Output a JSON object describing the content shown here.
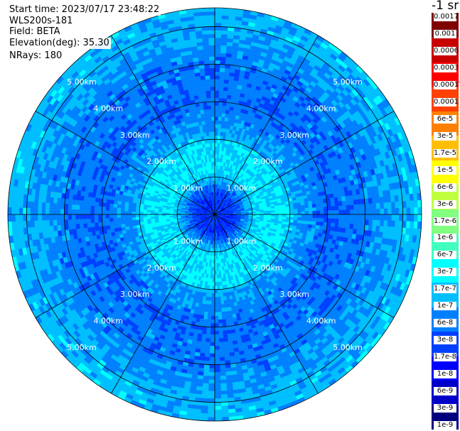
{
  "header": {
    "start_time": "Start time: 2023/07/17 23:48:22",
    "site": "WLS200s-181",
    "field": "Field: BETA",
    "elevation": "Elevation(deg): 35.30",
    "nrays": "NRays: 180"
  },
  "colorbar": {
    "unit_label": "-1 sr",
    "colors": [
      "#00007f",
      "#0000c8",
      "#0000ff",
      "#0040ff",
      "#0080ff",
      "#00bfff",
      "#00ffff",
      "#40ffbf",
      "#80ff80",
      "#bfff40",
      "#ffff00",
      "#ffbf00",
      "#ff8000",
      "#ff4000",
      "#ff0000",
      "#c80000",
      "#7f0000"
    ],
    "tick_labels": [
      "1e-9",
      "3e-9",
      "6e-9",
      "1e-8",
      "1.7e-8",
      "3e-8",
      "6e-8",
      "1e-7",
      "1.7e-7",
      "3e-7",
      "6e-7",
      "1e-6",
      "1.7e-6",
      "3e-6",
      "6e-6",
      "1e-5",
      "1.7e-5",
      "3e-5",
      "6e-5",
      "0.0001",
      "0.00017",
      "0.0003",
      "0.0006",
      "0.001",
      "0.0017"
    ]
  },
  "chart_data": {
    "type": "heatmap",
    "subtype": "polar-ppi",
    "field": "BETA",
    "units": "sr-1",
    "color_scale": "log",
    "value_range": [
      1e-09,
      0.0017
    ],
    "n_rays": 180,
    "max_range_km": 5.5,
    "range_rings_km": [
      1,
      2,
      3,
      4,
      5
    ],
    "range_labels": [
      "1.00km",
      "2.00km",
      "3.00km",
      "4.00km",
      "5.00km"
    ],
    "radial_lines_deg": [
      0,
      30,
      60,
      90,
      120,
      150,
      180,
      210,
      240,
      270,
      300,
      330
    ],
    "grid": true,
    "range_profile": [
      {
        "range_km": 0.2,
        "value": 1e-08
      },
      {
        "range_km": 0.6,
        "value": 2e-08
      },
      {
        "range_km": 0.9,
        "value": 8e-08
      },
      {
        "range_km": 1.2,
        "value": 2e-07
      },
      {
        "range_km": 1.5,
        "value": 1.5e-07
      },
      {
        "range_km": 1.8,
        "value": 2e-07
      },
      {
        "range_km": 2.2,
        "value": 6e-08
      },
      {
        "range_km": 2.6,
        "value": 5e-08
      },
      {
        "range_km": 3.0,
        "value": 3e-08
      },
      {
        "range_km": 3.5,
        "value": 4e-08
      },
      {
        "range_km": 4.0,
        "value": 4e-08
      },
      {
        "range_km": 4.5,
        "value": 6e-08
      },
      {
        "range_km": 5.0,
        "value": 9e-08
      },
      {
        "range_km": 5.5,
        "value": 1e-07
      }
    ]
  }
}
